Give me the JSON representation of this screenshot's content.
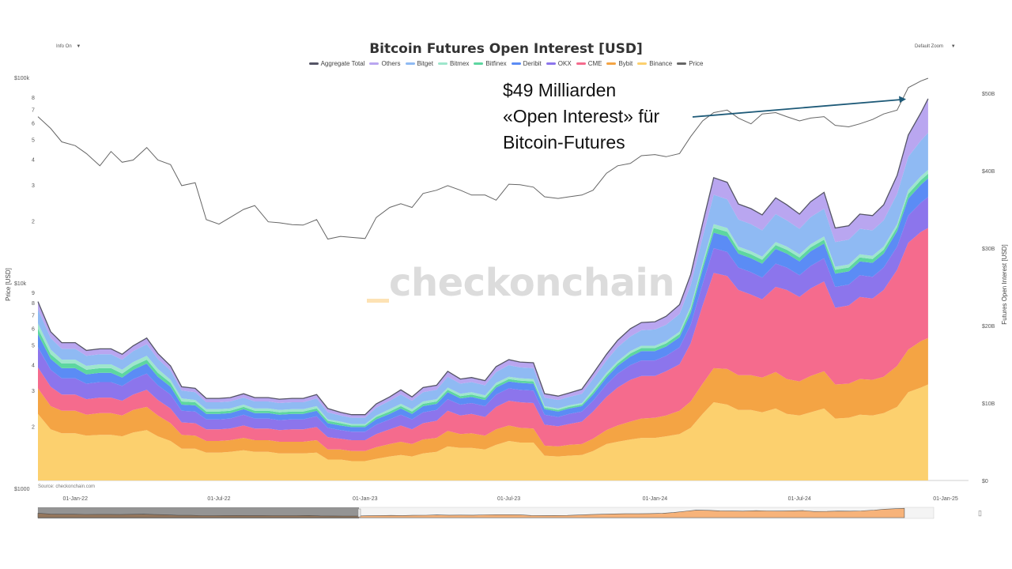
{
  "title": "Bitcoin Futures Open Interest [USD]",
  "controls": {
    "info": "Info On",
    "zoom": "Default Zoom",
    "caret": "▼"
  },
  "annotation": {
    "line1": "$49 Milliarden",
    "line2": "«Open Interest» für",
    "line3": "Bitcoin-Futures"
  },
  "watermark": "checkonchain",
  "source": "Source: checkonchain.com",
  "nav_icon": "▯",
  "colors": {
    "aggregate": "#555566",
    "others": "#b9a6f0",
    "bitget": "#8fbaf3",
    "bitmex": "#9ee6cc",
    "bitfinex": "#5dd6a0",
    "deribit": "#5b8cf5",
    "okx": "#8c75ec",
    "cme": "#f56b8d",
    "bybit": "#f4a444",
    "binance": "#fcd06e",
    "price": "#666666"
  },
  "chart_data": {
    "type": "area",
    "title": "Bitcoin Futures Open Interest [USD]",
    "stacked": true,
    "x": [
      "2021-11-15",
      "2021-12-01",
      "2021-12-15",
      "2022-01-01",
      "2022-01-15",
      "2022-02-01",
      "2022-02-15",
      "2022-03-01",
      "2022-03-15",
      "2022-04-01",
      "2022-04-15",
      "2022-05-01",
      "2022-05-15",
      "2022-06-01",
      "2022-06-15",
      "2022-07-01",
      "2022-07-15",
      "2022-08-01",
      "2022-08-15",
      "2022-09-01",
      "2022-09-15",
      "2022-10-01",
      "2022-10-15",
      "2022-11-01",
      "2022-11-15",
      "2022-12-01",
      "2022-12-15",
      "2023-01-01",
      "2023-01-15",
      "2023-02-01",
      "2023-02-15",
      "2023-03-01",
      "2023-03-15",
      "2023-04-01",
      "2023-04-15",
      "2023-05-01",
      "2023-05-15",
      "2023-06-01",
      "2023-06-15",
      "2023-07-01",
      "2023-07-15",
      "2023-08-01",
      "2023-08-15",
      "2023-09-01",
      "2023-09-15",
      "2023-10-01",
      "2023-10-15",
      "2023-11-01",
      "2023-11-15",
      "2023-12-01",
      "2023-12-15",
      "2024-01-01",
      "2024-01-15",
      "2024-02-01",
      "2024-02-15",
      "2024-03-01",
      "2024-03-15",
      "2024-04-01",
      "2024-04-15",
      "2024-05-01",
      "2024-05-15",
      "2024-06-01",
      "2024-06-15",
      "2024-07-01",
      "2024-07-15",
      "2024-08-01",
      "2024-08-15",
      "2024-09-01",
      "2024-09-15",
      "2024-10-01",
      "2024-10-15",
      "2024-11-01",
      "2024-11-15",
      "2024-12-01",
      "2024-12-10"
    ],
    "series": [
      {
        "name": "Binance",
        "key": "binance",
        "values": [
          8.6,
          6.6,
          6.1,
          6.1,
          5.8,
          5.9,
          5.9,
          5.7,
          6.2,
          6.5,
          5.7,
          5.1,
          4.1,
          4.1,
          3.6,
          3.6,
          3.7,
          3.9,
          3.7,
          3.7,
          3.5,
          3.5,
          3.5,
          3.6,
          2.7,
          2.7,
          2.5,
          2.5,
          2.8,
          3.1,
          3.3,
          3.1,
          3.5,
          3.7,
          4.4,
          4.2,
          4.2,
          4.0,
          4.6,
          5.1,
          4.9,
          4.9,
          3.2,
          3.1,
          3.2,
          3.3,
          3.8,
          4.7,
          5.0,
          5.3,
          5.5,
          5.5,
          5.7,
          6.0,
          6.8,
          8.6,
          10.1,
          9.8,
          9.1,
          9.1,
          8.8,
          9.3,
          8.6,
          8.4,
          8.8,
          9.3,
          8.0,
          8.1,
          8.5,
          8.4,
          8.7,
          9.5,
          11.4,
          12.0,
          12.4
        ]
      },
      {
        "name": "Bybit",
        "key": "bybit",
        "values": [
          3.3,
          3.0,
          2.9,
          2.9,
          2.7,
          2.8,
          2.8,
          2.7,
          2.9,
          3.0,
          2.7,
          2.3,
          1.8,
          1.7,
          1.5,
          1.5,
          1.5,
          1.6,
          1.5,
          1.5,
          1.5,
          1.5,
          1.5,
          1.6,
          1.3,
          1.3,
          1.3,
          1.3,
          1.5,
          1.6,
          1.7,
          1.6,
          1.8,
          1.8,
          2.0,
          1.8,
          1.9,
          1.8,
          2.0,
          2.0,
          1.9,
          1.8,
          1.3,
          1.3,
          1.4,
          1.4,
          1.6,
          1.8,
          2.1,
          2.3,
          2.5,
          2.6,
          2.7,
          3.0,
          3.4,
          3.9,
          4.4,
          4.6,
          4.5,
          4.5,
          4.5,
          4.7,
          4.5,
          4.4,
          4.7,
          4.8,
          4.4,
          4.4,
          4.6,
          4.6,
          4.7,
          5.3,
          5.5,
          6.0,
          6.0
        ]
      },
      {
        "name": "CME",
        "key": "cme",
        "values": [
          2.7,
          2.5,
          2.1,
          2.1,
          2.0,
          2.0,
          2.0,
          1.9,
          2.0,
          2.2,
          2.0,
          1.9,
          1.6,
          1.6,
          1.5,
          1.5,
          1.5,
          1.6,
          1.5,
          1.5,
          1.5,
          1.6,
          1.6,
          1.7,
          1.6,
          1.4,
          1.4,
          1.4,
          1.7,
          1.9,
          2.1,
          1.9,
          2.1,
          2.2,
          2.6,
          2.4,
          2.5,
          2.4,
          2.9,
          3.2,
          3.3,
          3.3,
          2.7,
          2.6,
          2.7,
          2.9,
          3.5,
          4.3,
          4.9,
          5.4,
          5.5,
          5.4,
          5.7,
          6.0,
          7.5,
          10.1,
          12.3,
          12.0,
          11.0,
          10.4,
          10.1,
          11.0,
          11.5,
          10.9,
          11.3,
          11.6,
          9.9,
          10.1,
          10.6,
          10.5,
          11.2,
          12.4,
          13.8,
          14.1,
          14.2
        ]
      },
      {
        "name": "OKX",
        "key": "okx",
        "values": [
          2.6,
          2.2,
          2.1,
          2.1,
          2.0,
          2.0,
          2.0,
          1.9,
          2.0,
          2.1,
          1.9,
          1.8,
          1.5,
          1.5,
          1.3,
          1.3,
          1.3,
          1.4,
          1.3,
          1.3,
          1.3,
          1.3,
          1.3,
          1.4,
          1.2,
          1.1,
          1.1,
          1.1,
          1.2,
          1.3,
          1.4,
          1.3,
          1.4,
          1.4,
          1.5,
          1.4,
          1.4,
          1.4,
          1.6,
          1.6,
          1.6,
          1.6,
          1.3,
          1.2,
          1.3,
          1.3,
          1.4,
          1.6,
          1.8,
          1.9,
          2.0,
          2.0,
          2.0,
          2.2,
          2.4,
          2.8,
          3.2,
          3.1,
          2.9,
          2.9,
          2.8,
          3.0,
          2.9,
          2.8,
          2.9,
          3.0,
          2.7,
          2.7,
          2.8,
          2.8,
          2.9,
          3.0,
          3.5,
          3.8,
          4.0
        ]
      },
      {
        "name": "Deribit",
        "key": "deribit",
        "values": [
          1.7,
          1.4,
          1.3,
          1.3,
          1.2,
          1.2,
          1.2,
          1.1,
          1.2,
          1.3,
          1.1,
          1.0,
          0.8,
          0.8,
          0.7,
          0.7,
          0.7,
          0.7,
          0.7,
          0.7,
          0.7,
          0.7,
          0.7,
          0.7,
          0.6,
          0.6,
          0.6,
          0.6,
          0.7,
          0.7,
          0.8,
          0.7,
          0.8,
          0.8,
          0.9,
          0.8,
          0.8,
          0.8,
          0.9,
          0.9,
          0.9,
          0.9,
          0.7,
          0.7,
          0.7,
          0.7,
          0.8,
          0.9,
          1.0,
          1.1,
          1.2,
          1.2,
          1.2,
          1.3,
          1.5,
          1.8,
          2.0,
          2.0,
          1.8,
          1.8,
          1.8,
          1.9,
          1.8,
          1.8,
          1.9,
          1.9,
          1.7,
          1.7,
          1.8,
          1.8,
          1.8,
          2.0,
          2.2,
          2.3,
          2.4
        ]
      },
      {
        "name": "Bitfinex",
        "key": "bitfinex",
        "values": [
          0.7,
          0.6,
          0.6,
          0.6,
          0.6,
          0.6,
          0.6,
          0.5,
          0.5,
          0.5,
          0.5,
          0.5,
          0.4,
          0.4,
          0.3,
          0.3,
          0.3,
          0.3,
          0.3,
          0.3,
          0.3,
          0.3,
          0.3,
          0.3,
          0.3,
          0.3,
          0.2,
          0.2,
          0.3,
          0.3,
          0.3,
          0.3,
          0.3,
          0.3,
          0.3,
          0.3,
          0.3,
          0.3,
          0.3,
          0.3,
          0.3,
          0.3,
          0.2,
          0.2,
          0.2,
          0.2,
          0.3,
          0.3,
          0.3,
          0.4,
          0.4,
          0.4,
          0.4,
          0.4,
          0.5,
          0.5,
          0.6,
          0.6,
          0.5,
          0.5,
          0.5,
          0.5,
          0.5,
          0.5,
          0.5,
          0.5,
          0.5,
          0.5,
          0.5,
          0.5,
          0.5,
          0.5,
          0.6,
          0.6,
          0.6
        ]
      },
      {
        "name": "Bitmex",
        "key": "bitmex",
        "values": [
          0.7,
          0.6,
          0.5,
          0.5,
          0.5,
          0.5,
          0.5,
          0.5,
          0.5,
          0.5,
          0.5,
          0.4,
          0.4,
          0.3,
          0.3,
          0.3,
          0.3,
          0.3,
          0.3,
          0.3,
          0.3,
          0.3,
          0.3,
          0.3,
          0.2,
          0.2,
          0.2,
          0.2,
          0.2,
          0.3,
          0.3,
          0.3,
          0.3,
          0.3,
          0.3,
          0.3,
          0.3,
          0.3,
          0.3,
          0.3,
          0.3,
          0.3,
          0.2,
          0.2,
          0.2,
          0.2,
          0.3,
          0.3,
          0.3,
          0.3,
          0.3,
          0.3,
          0.3,
          0.3,
          0.4,
          0.4,
          0.5,
          0.5,
          0.4,
          0.4,
          0.4,
          0.4,
          0.4,
          0.4,
          0.4,
          0.4,
          0.4,
          0.4,
          0.4,
          0.4,
          0.4,
          0.4,
          0.5,
          0.5,
          0.5
        ]
      },
      {
        "name": "Bitget",
        "key": "bitget",
        "values": [
          1.8,
          1.5,
          1.4,
          1.4,
          1.3,
          1.3,
          1.3,
          1.3,
          1.4,
          1.5,
          1.3,
          1.2,
          1.0,
          1.0,
          0.9,
          0.9,
          0.9,
          0.9,
          0.9,
          0.9,
          0.9,
          0.9,
          0.9,
          1.0,
          0.9,
          0.8,
          0.8,
          0.8,
          1.0,
          1.1,
          1.2,
          1.1,
          1.2,
          1.2,
          1.4,
          1.3,
          1.3,
          1.3,
          1.4,
          1.5,
          1.4,
          1.4,
          1.1,
          1.1,
          1.1,
          1.2,
          1.4,
          1.6,
          1.8,
          1.9,
          2.0,
          2.1,
          2.1,
          2.3,
          2.7,
          3.3,
          3.8,
          3.7,
          3.5,
          3.5,
          3.4,
          3.6,
          3.4,
          3.3,
          3.5,
          3.6,
          3.2,
          3.2,
          3.3,
          3.3,
          3.4,
          3.9,
          4.3,
          4.6,
          4.8
        ]
      },
      {
        "name": "Others",
        "key": "others",
        "values": [
          1.0,
          0.8,
          0.8,
          0.8,
          0.7,
          0.7,
          0.7,
          0.7,
          0.7,
          0.8,
          0.7,
          0.6,
          0.5,
          0.5,
          0.5,
          0.5,
          0.5,
          0.5,
          0.5,
          0.5,
          0.5,
          0.5,
          0.5,
          0.5,
          0.5,
          0.4,
          0.4,
          0.4,
          0.5,
          0.5,
          0.6,
          0.5,
          0.6,
          0.6,
          0.7,
          0.6,
          0.6,
          0.6,
          0.7,
          0.7,
          0.7,
          0.7,
          0.5,
          0.5,
          0.5,
          0.6,
          0.7,
          0.8,
          0.9,
          1.0,
          1.0,
          1.0,
          1.1,
          1.2,
          1.4,
          1.8,
          2.2,
          2.2,
          2.0,
          2.0,
          2.0,
          2.1,
          2.0,
          1.9,
          2.0,
          2.1,
          1.8,
          1.8,
          1.9,
          1.9,
          2.0,
          2.4,
          2.8,
          3.6,
          4.4
        ]
      }
    ],
    "aggregate_total_name": "Aggregate Total",
    "price": {
      "name": "Price",
      "values": [
        65000,
        57000,
        49000,
        47000,
        43000,
        37500,
        44000,
        39000,
        40000,
        46000,
        40000,
        38000,
        30000,
        31000,
        20500,
        19500,
        21000,
        23000,
        24000,
        20000,
        19800,
        19400,
        19300,
        20500,
        16500,
        17000,
        16800,
        16600,
        21000,
        23500,
        24500,
        23500,
        27500,
        28500,
        30000,
        28500,
        27000,
        27000,
        25500,
        30500,
        30300,
        29500,
        26500,
        26000,
        26500,
        27000,
        28500,
        34500,
        37500,
        38500,
        42000,
        42500,
        41500,
        43000,
        52000,
        62000,
        68000,
        70000,
        64000,
        60000,
        67000,
        68000,
        65000,
        62000,
        64000,
        65000,
        59000,
        58000,
        60000,
        63000,
        67000,
        70000,
        90000,
        97000,
        100000
      ]
    },
    "left_axis": {
      "label": "Price [USD]",
      "scale": "log",
      "ticks": [
        "$100k",
        "8",
        "7",
        "6",
        "5",
        "4",
        "3",
        "2",
        "$10k",
        "9",
        "8",
        "7",
        "6",
        "5",
        "4",
        "3",
        "2",
        "$1000"
      ]
    },
    "right_axis": {
      "label": "Futures Open Interest [USD]",
      "ylim": [
        0,
        50
      ],
      "ticks": [
        "$0",
        "$10B",
        "$20B",
        "$30B",
        "$40B",
        "$50B"
      ]
    },
    "x_ticks": [
      "01-Jan-22",
      "01-Jul-22",
      "01-Jan-23",
      "01-Jul-23",
      "01-Jan-24",
      "01-Jul-24",
      "01-Jan-25"
    ],
    "legend": [
      "Aggregate Total",
      "Others",
      "Bitget",
      "Bitmex",
      "Bitfinex",
      "Deribit",
      "OKX",
      "CME",
      "Bybit",
      "Binance",
      "Price"
    ]
  }
}
